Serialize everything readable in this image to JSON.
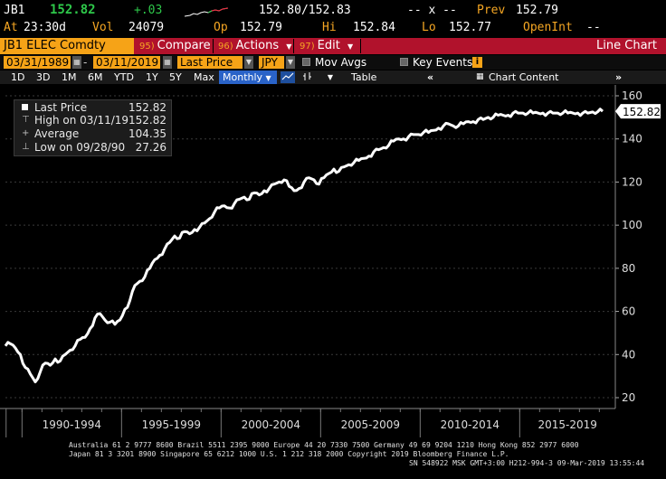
{
  "quote": {
    "ticker": "JB1",
    "last": "152.82",
    "change": "+.03",
    "bid_ask": "152.80/152.83",
    "xx": "-- x --",
    "prev_label": "Prev",
    "prev": "152.79",
    "at_label": "At",
    "time": "23:30d",
    "vol_label": "Vol",
    "vol": "24079",
    "op_label": "Op",
    "op": "152.79",
    "hi_label": "Hi",
    "hi": "152.84",
    "lo_label": "Lo",
    "lo": "152.77",
    "openint_label": "OpenInt",
    "openint_value": "--"
  },
  "function_bar": {
    "security": "JB1 ELEC Comdty",
    "compare_num": "95)",
    "compare_label": "Compare",
    "actions_num": "96)",
    "actions_label": "Actions",
    "edit_num": "97)",
    "edit_label": "Edit",
    "title": "Line Chart"
  },
  "controls": {
    "start_date": "03/31/1989",
    "end_date": "03/11/2019",
    "field": "Last Price",
    "currency": "JPY",
    "mov_avgs": "Mov Avgs",
    "key_events": "Key Events",
    "info_icon": "i"
  },
  "toolbar": {
    "ranges": [
      "1D",
      "3D",
      "1M",
      "6M",
      "YTD",
      "1Y",
      "5Y",
      "Max"
    ],
    "period": "Monthly",
    "table_label": "Table",
    "chart_content": "Chart Content"
  },
  "legend": {
    "last_label": "Last Price",
    "last_value": "152.82",
    "high_label": "High on 03/11/19",
    "high_value": "152.82",
    "avg_label": "Average",
    "avg_value": "104.35",
    "low_label": "Low on 09/28/90",
    "low_value": "27.26"
  },
  "chart_data": {
    "type": "line",
    "series": [
      {
        "x": [
          "1989-03",
          "1989-06",
          "1989-09",
          "1989-12",
          "1990-03",
          "1990-06",
          "1990-09",
          "1990-12",
          "1991-03",
          "1991-06",
          "1991-09",
          "1991-12",
          "1992-03",
          "1992-06",
          "1992-09",
          "1992-12",
          "1993-03",
          "1993-06",
          "1993-09",
          "1993-12",
          "1994-03",
          "1994-06",
          "1994-09",
          "1994-12",
          "1995-03",
          "1995-06",
          "1995-09",
          "1995-12",
          "1996-03",
          "1996-06",
          "1996-09",
          "1996-12",
          "1997-03",
          "1997-06",
          "1997-09",
          "1997-12",
          "1998-03",
          "1998-06",
          "1998-09",
          "1998-12",
          "1999-03",
          "1999-06",
          "1999-09",
          "1999-12",
          "2000-03",
          "2000-06",
          "2000-09",
          "2000-12",
          "2001-03",
          "2001-06",
          "2001-09",
          "2001-12",
          "2002-03",
          "2002-06",
          "2002-09",
          "2002-12",
          "2003-03",
          "2003-06",
          "2003-09",
          "2003-12",
          "2004-03",
          "2004-06",
          "2004-09",
          "2004-12",
          "2005-03",
          "2005-06",
          "2005-09",
          "2005-12",
          "2006-03",
          "2006-06",
          "2006-09",
          "2006-12",
          "2007-03",
          "2007-06",
          "2007-09",
          "2007-12",
          "2008-03",
          "2008-06",
          "2008-09",
          "2008-12",
          "2009-03",
          "2009-06",
          "2009-09",
          "2009-12",
          "2010-03",
          "2010-06",
          "2010-09",
          "2010-12",
          "2011-03",
          "2011-06",
          "2011-09",
          "2011-12",
          "2012-03",
          "2012-06",
          "2012-09",
          "2012-12",
          "2013-03",
          "2013-06",
          "2013-09",
          "2013-12",
          "2014-03",
          "2014-06",
          "2014-09",
          "2014-12",
          "2015-03",
          "2015-06",
          "2015-09",
          "2015-12",
          "2016-03",
          "2016-06",
          "2016-09",
          "2016-12",
          "2017-03",
          "2017-06",
          "2017-09",
          "2017-12",
          "2018-03",
          "2018-06",
          "2018-09",
          "2018-12",
          "2019-03"
        ],
        "y": [
          44,
          45,
          43,
          40,
          34,
          31,
          27.3,
          32,
          36,
          35,
          38,
          37,
          40,
          42,
          44,
          47,
          48,
          52,
          57,
          59,
          56,
          55,
          54,
          56,
          61,
          65,
          72,
          74,
          76,
          80,
          84,
          86,
          89,
          92,
          95,
          94,
          97,
          96,
          98,
          99,
          101,
          103,
          106,
          108,
          109,
          108,
          110,
          112,
          113,
          112,
          115,
          114,
          116,
          117,
          119,
          120,
          121,
          118,
          116,
          117,
          120,
          122,
          121,
          119,
          122,
          124,
          126,
          125,
          127,
          128,
          129,
          130,
          131,
          132,
          134,
          135,
          136,
          137,
          139,
          140,
          140,
          141,
          142,
          142,
          143,
          143,
          144,
          145,
          146,
          147,
          146,
          146,
          147,
          148,
          148,
          149,
          149,
          150,
          150,
          151,
          151,
          151,
          152,
          152,
          152,
          152,
          152,
          152,
          152,
          152,
          152,
          152,
          152,
          152,
          152,
          152,
          152,
          152,
          152.5,
          152.6,
          152.82
        ]
      }
    ],
    "y_ticks": [
      "20",
      "40",
      "60",
      "80",
      "100",
      "120",
      "140",
      "160"
    ],
    "x_tick_labels": [
      "1990-1994",
      "1995-1999",
      "2000-2004",
      "2005-2009",
      "2010-2014",
      "2015-2019"
    ],
    "ylim": [
      20,
      160
    ],
    "last_label": "152.82",
    "grid": true,
    "line_color": "#ffffff"
  },
  "footer": {
    "line1": "Australia 61 2 9777 8600 Brazil 5511 2395 9000 Europe 44 20 7330 7500 Germany 49 69 9204 1210 Hong Kong 852 2977 6000",
    "line2": "Japan 81 3 3201 8900         Singapore 65 6212 1000         U.S. 1 212 318 2000         Copyright 2019 Bloomberg Finance L.P.",
    "line3": "SN 548922 MSK  GMT+3:00 H212-994-3 09-Mar-2019 13:55:44"
  }
}
